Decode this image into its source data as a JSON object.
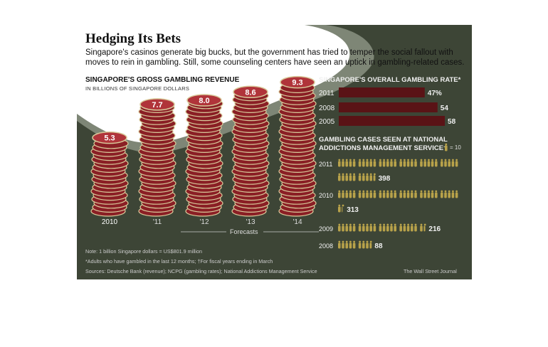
{
  "title": "Hedging Its Bets",
  "subtitle_line1": "Singapore's casinos generate big bucks, but the government has tried to temper the social fallout with",
  "subtitle_line2": "moves to rein in gambling. Still, some counseling centers have seen an uptick in gambling-related cases.",
  "colors": {
    "panel": "#3d4536",
    "chip": "#8a1f25",
    "chip_edge": "#d8c99a",
    "bar": "#5a1316",
    "figure": "#b8a24a"
  },
  "chart_data": [
    {
      "type": "bar",
      "title": "SINGAPORE'S GROSS GAMBLING REVENUE",
      "subtitle": "IN BILLIONS OF SINGAPORE DOLLARS",
      "categories": [
        "2010",
        "'11",
        "'12",
        "'13",
        "'14"
      ],
      "values": [
        5.3,
        7.7,
        8.0,
        8.6,
        9.3
      ],
      "value_labels": [
        "5.3",
        "7.7",
        "8.0",
        "8.6",
        "9.3"
      ],
      "annotation": "Forecasts",
      "forecast_categories": [
        "'12",
        "'13",
        "'14"
      ]
    },
    {
      "type": "bar",
      "title": "SINGAPORE'S OVERALL GAMBLING RATE*",
      "categories": [
        "2011",
        "2008",
        "2005"
      ],
      "values": [
        47,
        54,
        58
      ],
      "value_labels": [
        "47%",
        "54",
        "58"
      ]
    },
    {
      "type": "bar",
      "title_line1": "GAMBLING CASES SEEN AT NATIONAL",
      "title_line2": "ADDICTIONS MANAGEMENT SERVICE†",
      "legend": "= 10",
      "unit_per_figure": 10,
      "categories": [
        "2011",
        "2010",
        "2009",
        "2008"
      ],
      "values": [
        398,
        313,
        216,
        88
      ],
      "value_labels": [
        "398",
        "313",
        "216",
        "88"
      ]
    }
  ],
  "notes": {
    "note1": "Note: 1 billion Singapore dollars = US$801.9 million",
    "note2": "*Adults who have gambled in the last 12 months; †For fiscal years ending in March",
    "sources": "Sources: Deutsche Bank (revenue); NCPG (gambling rates); National Addictions Management Service",
    "credit": "The Wall Street Journal"
  }
}
